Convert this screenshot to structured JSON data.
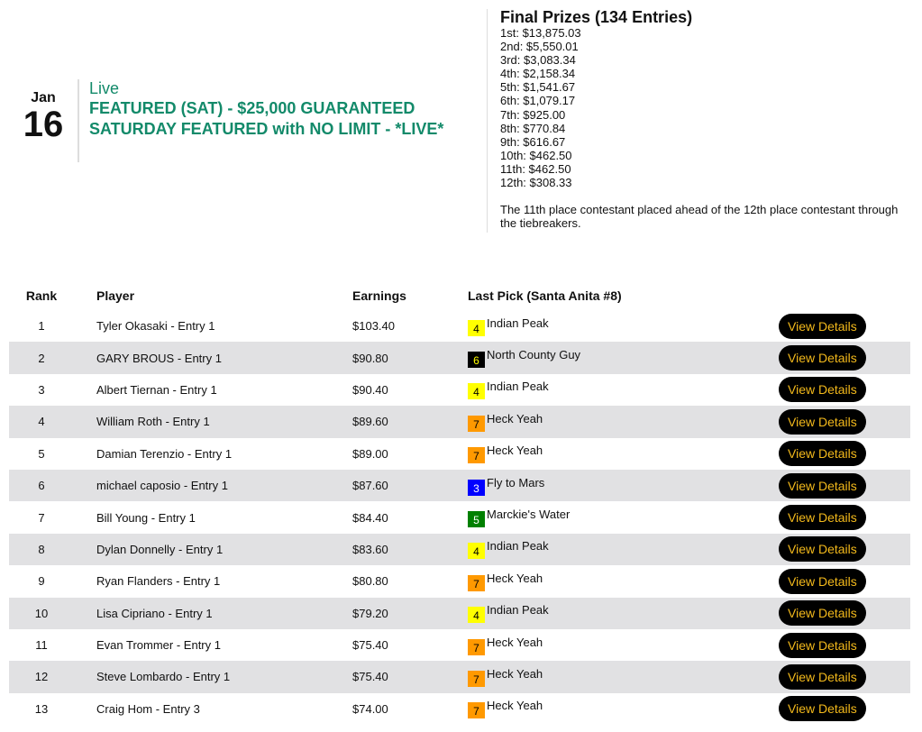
{
  "contest": {
    "month": "Jan",
    "day": "16",
    "status": "Live",
    "name": "FEATURED (SAT) - $25,000 GUARANTEED SATURDAY FEATURED with NO LIMIT - *LIVE*"
  },
  "prizes": {
    "title": "Final Prizes (134 Entries)",
    "list": [
      "1st: $13,875.03",
      "2nd: $5,550.01",
      "3rd: $3,083.34",
      "4th: $2,158.34",
      "5th: $1,541.67",
      "6th: $1,079.17",
      "7th: $925.00",
      "8th: $770.84",
      "9th: $616.67",
      "10th: $462.50",
      "11th: $462.50",
      "12th: $308.33"
    ],
    "note": "The 11th place contestant placed ahead of the 12th place contestant through the tiebreakers."
  },
  "table": {
    "headers": {
      "rank": "Rank",
      "player": "Player",
      "earnings": "Earnings",
      "last_pick": "Last Pick (Santa Anita #8)"
    },
    "button_label": "View Details",
    "rows": [
      {
        "rank": "1",
        "player": "Tyler Okasaki - Entry 1",
        "earnings": "$103.40",
        "num": "4",
        "horse": "Indian Peak",
        "bg": "#ffff00",
        "fg": "#000000"
      },
      {
        "rank": "2",
        "player": "GARY BROUS - Entry 1",
        "earnings": "$90.80",
        "num": "6",
        "horse": "North County Guy",
        "bg": "#000000",
        "fg": "#ffff00"
      },
      {
        "rank": "3",
        "player": "Albert Tiernan - Entry 1",
        "earnings": "$90.40",
        "num": "4",
        "horse": "Indian Peak",
        "bg": "#ffff00",
        "fg": "#000000"
      },
      {
        "rank": "4",
        "player": "William Roth - Entry 1",
        "earnings": "$89.60",
        "num": "7",
        "horse": "Heck Yeah",
        "bg": "#ff9900",
        "fg": "#000000"
      },
      {
        "rank": "5",
        "player": "Damian Terenzio - Entry 1",
        "earnings": "$89.00",
        "num": "7",
        "horse": "Heck Yeah",
        "bg": "#ff9900",
        "fg": "#000000"
      },
      {
        "rank": "6",
        "player": "michael caposio - Entry 1",
        "earnings": "$87.60",
        "num": "3",
        "horse": "Fly to Mars",
        "bg": "#0000ff",
        "fg": "#ffffff"
      },
      {
        "rank": "7",
        "player": "Bill Young - Entry 1",
        "earnings": "$84.40",
        "num": "5",
        "horse": "Marckie's Water",
        "bg": "#008000",
        "fg": "#ffffff"
      },
      {
        "rank": "8",
        "player": "Dylan Donnelly - Entry 1",
        "earnings": "$83.60",
        "num": "4",
        "horse": "Indian Peak",
        "bg": "#ffff00",
        "fg": "#000000"
      },
      {
        "rank": "9",
        "player": "Ryan Flanders - Entry 1",
        "earnings": "$80.80",
        "num": "7",
        "horse": "Heck Yeah",
        "bg": "#ff9900",
        "fg": "#000000"
      },
      {
        "rank": "10",
        "player": "Lisa Cipriano - Entry 1",
        "earnings": "$79.20",
        "num": "4",
        "horse": "Indian Peak",
        "bg": "#ffff00",
        "fg": "#000000"
      },
      {
        "rank": "11",
        "player": "Evan Trommer - Entry 1",
        "earnings": "$75.40",
        "num": "7",
        "horse": "Heck Yeah",
        "bg": "#ff9900",
        "fg": "#000000"
      },
      {
        "rank": "12",
        "player": "Steve Lombardo - Entry 1",
        "earnings": "$75.40",
        "num": "7",
        "horse": "Heck Yeah",
        "bg": "#ff9900",
        "fg": "#000000"
      },
      {
        "rank": "13",
        "player": "Craig Hom - Entry 3",
        "earnings": "$74.00",
        "num": "7",
        "horse": "Heck Yeah",
        "bg": "#ff9900",
        "fg": "#000000"
      }
    ]
  }
}
